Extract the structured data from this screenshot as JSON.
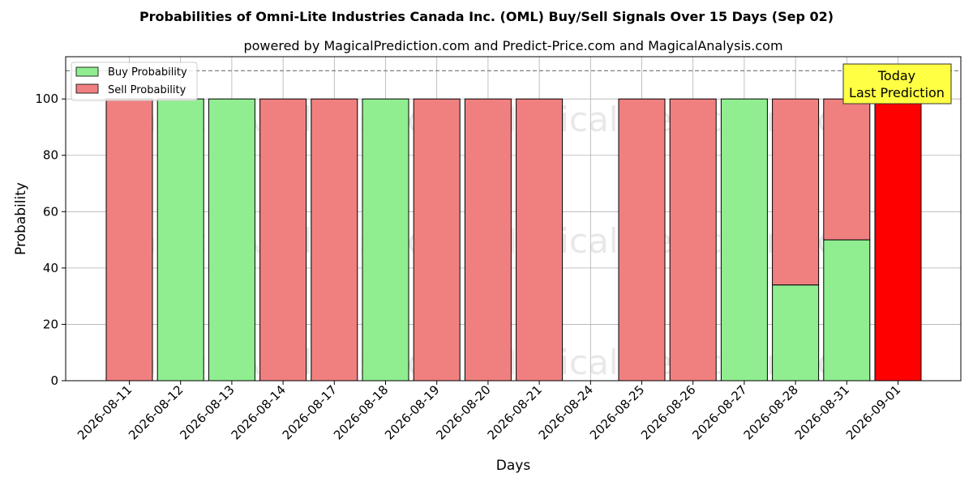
{
  "colors": {
    "buy": "#90ee90",
    "sell": "#f08080",
    "today": "#ff0000",
    "annotation_bg": "#ffff44",
    "grid": "#b0b0b0",
    "reference_line": "#808080"
  },
  "chart_data": {
    "type": "bar",
    "title": "Probabilities of Omni-Lite Industries Canada Inc. (OML) Buy/Sell Signals Over 15 Days (Sep 02)",
    "subtitle": "powered by MagicalPrediction.com and Predict-Price.com and MagicalAnalysis.com",
    "xlabel": "Days",
    "ylabel": "Probability",
    "ylim": [
      0,
      115
    ],
    "yticks": [
      0,
      20,
      40,
      60,
      80,
      100
    ],
    "reference_line": 110,
    "stacked": true,
    "grid": true,
    "legend_position": "top-left",
    "categories": [
      "2026-08-11",
      "2026-08-12",
      "2026-08-13",
      "2026-08-14",
      "2026-08-17",
      "2026-08-18",
      "2026-08-19",
      "2026-08-20",
      "2026-08-21",
      "2026-08-24",
      "2026-08-25",
      "2026-08-26",
      "2026-08-27",
      "2026-08-28",
      "2026-08-31",
      "2026-09-01"
    ],
    "series": [
      {
        "name": "Buy Probability",
        "values": [
          0,
          100,
          100,
          0,
          0,
          100,
          0,
          0,
          0,
          0,
          0,
          0,
          100,
          34,
          50,
          0
        ]
      },
      {
        "name": "Sell Probability",
        "values": [
          100,
          0,
          0,
          100,
          100,
          0,
          100,
          100,
          100,
          0,
          100,
          100,
          0,
          66,
          50,
          100
        ]
      }
    ],
    "highlight_category": "2026-09-01",
    "annotation": {
      "lines": [
        "Today",
        "Last Prediction"
      ],
      "position": "top-right"
    },
    "watermarks": [
      "MagicalAnalysis.com",
      "MagicalPrediction.com"
    ]
  }
}
